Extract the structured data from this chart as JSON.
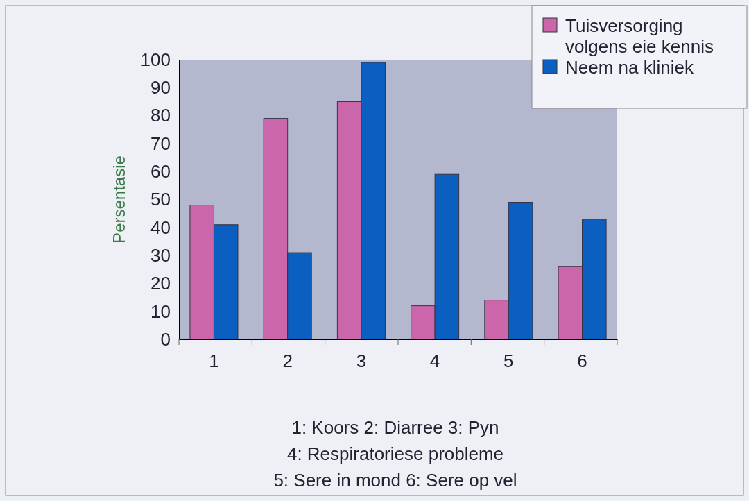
{
  "chart_data": {
    "type": "bar",
    "ylabel": "Persentasie",
    "categories": [
      "1",
      "2",
      "3",
      "4",
      "5",
      "6"
    ],
    "series": [
      {
        "name": "Tuisversorging volgens eie kennis",
        "color": "#cc66aa",
        "values": [
          48,
          79,
          85,
          12,
          14,
          26
        ]
      },
      {
        "name": "Neem na kliniek",
        "color": "#0a5fc0",
        "values": [
          41,
          31,
          99,
          59,
          49,
          43
        ]
      }
    ],
    "ylim": [
      0,
      100
    ],
    "yticks": [
      0,
      10,
      20,
      30,
      40,
      50,
      60,
      70,
      80,
      90,
      100
    ],
    "grid": false,
    "legend": "top right",
    "annotations": [
      "1: Koors  2: Diarree  3: Pyn",
      "4: Respiratoriese probleme",
      "5: Sere in mond  6: Sere op vel"
    ]
  }
}
